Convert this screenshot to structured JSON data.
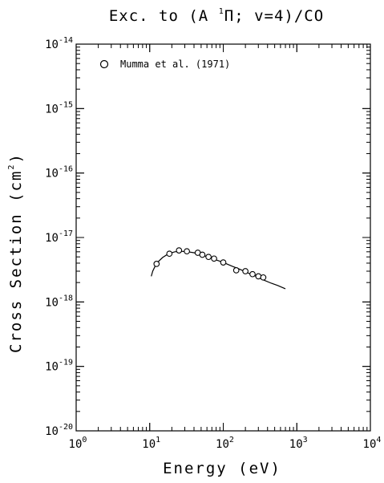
{
  "title": {
    "prefix": "Exc. to (A ",
    "superscript": "1",
    "symbol": "Π",
    "suffix": "; v=4)/CO"
  },
  "colors": {
    "axes": "#000000",
    "series": "#000000",
    "background": "#ffffff"
  },
  "chart_data": {
    "type": "scatter",
    "x_scale": "log",
    "y_scale": "log",
    "xlim": [
      1,
      10000
    ],
    "ylim": [
      1e-20,
      1e-14
    ],
    "grid": false,
    "legend_position": "top-left",
    "xlabel": "Energy (eV)",
    "ylabel": {
      "text": "Cross Section (cm",
      "superscript": "2",
      "close": ")"
    },
    "x_ticks": [
      {
        "value": 1,
        "base": "10",
        "exp": "0"
      },
      {
        "value": 10,
        "base": "10",
        "exp": "1"
      },
      {
        "value": 100,
        "base": "10",
        "exp": "2"
      },
      {
        "value": 1000,
        "base": "10",
        "exp": "3"
      },
      {
        "value": 10000,
        "base": "10",
        "exp": "4"
      }
    ],
    "y_ticks": [
      {
        "value": 1e-20,
        "base": "10",
        "exp": "-20"
      },
      {
        "value": 1e-19,
        "base": "10",
        "exp": "-19"
      },
      {
        "value": 1e-18,
        "base": "10",
        "exp": "-18"
      },
      {
        "value": 1e-17,
        "base": "10",
        "exp": "-17"
      },
      {
        "value": 1e-16,
        "base": "10",
        "exp": "-16"
      },
      {
        "value": 1e-15,
        "base": "10",
        "exp": "-15"
      },
      {
        "value": 1e-14,
        "base": "10",
        "exp": "-14"
      }
    ],
    "series": [
      {
        "name": "Mumma et al. (1971)",
        "marker": "circle",
        "x": [
          12.4,
          18.5,
          25,
          32,
          45,
          52,
          63,
          75,
          100,
          150,
          200,
          250,
          300,
          350
        ],
        "y": [
          3.9e-18,
          5.6e-18,
          6.3e-18,
          6.1e-18,
          5.8e-18,
          5.4e-18,
          5e-18,
          4.7e-18,
          4.1e-18,
          3.1e-18,
          3e-18,
          2.7e-18,
          2.5e-18,
          2.4e-18
        ]
      },
      {
        "marker": "line",
        "x": [
          10.5,
          11,
          12,
          13,
          15,
          18,
          22,
          27,
          33,
          40,
          50,
          65,
          80,
          100,
          130,
          170,
          220,
          280,
          350,
          450,
          550,
          700
        ],
        "y": [
          2.5e-18,
          3e-18,
          3.7e-18,
          4.2e-18,
          4.9e-18,
          5.6e-18,
          6e-18,
          6.1e-18,
          6e-18,
          5.8e-18,
          5.4e-18,
          4.9e-18,
          4.5e-18,
          4.1e-18,
          3.6e-18,
          3.2e-18,
          2.8e-18,
          2.5e-18,
          2.2e-18,
          1.95e-18,
          1.8e-18,
          1.6e-18
        ]
      }
    ]
  }
}
